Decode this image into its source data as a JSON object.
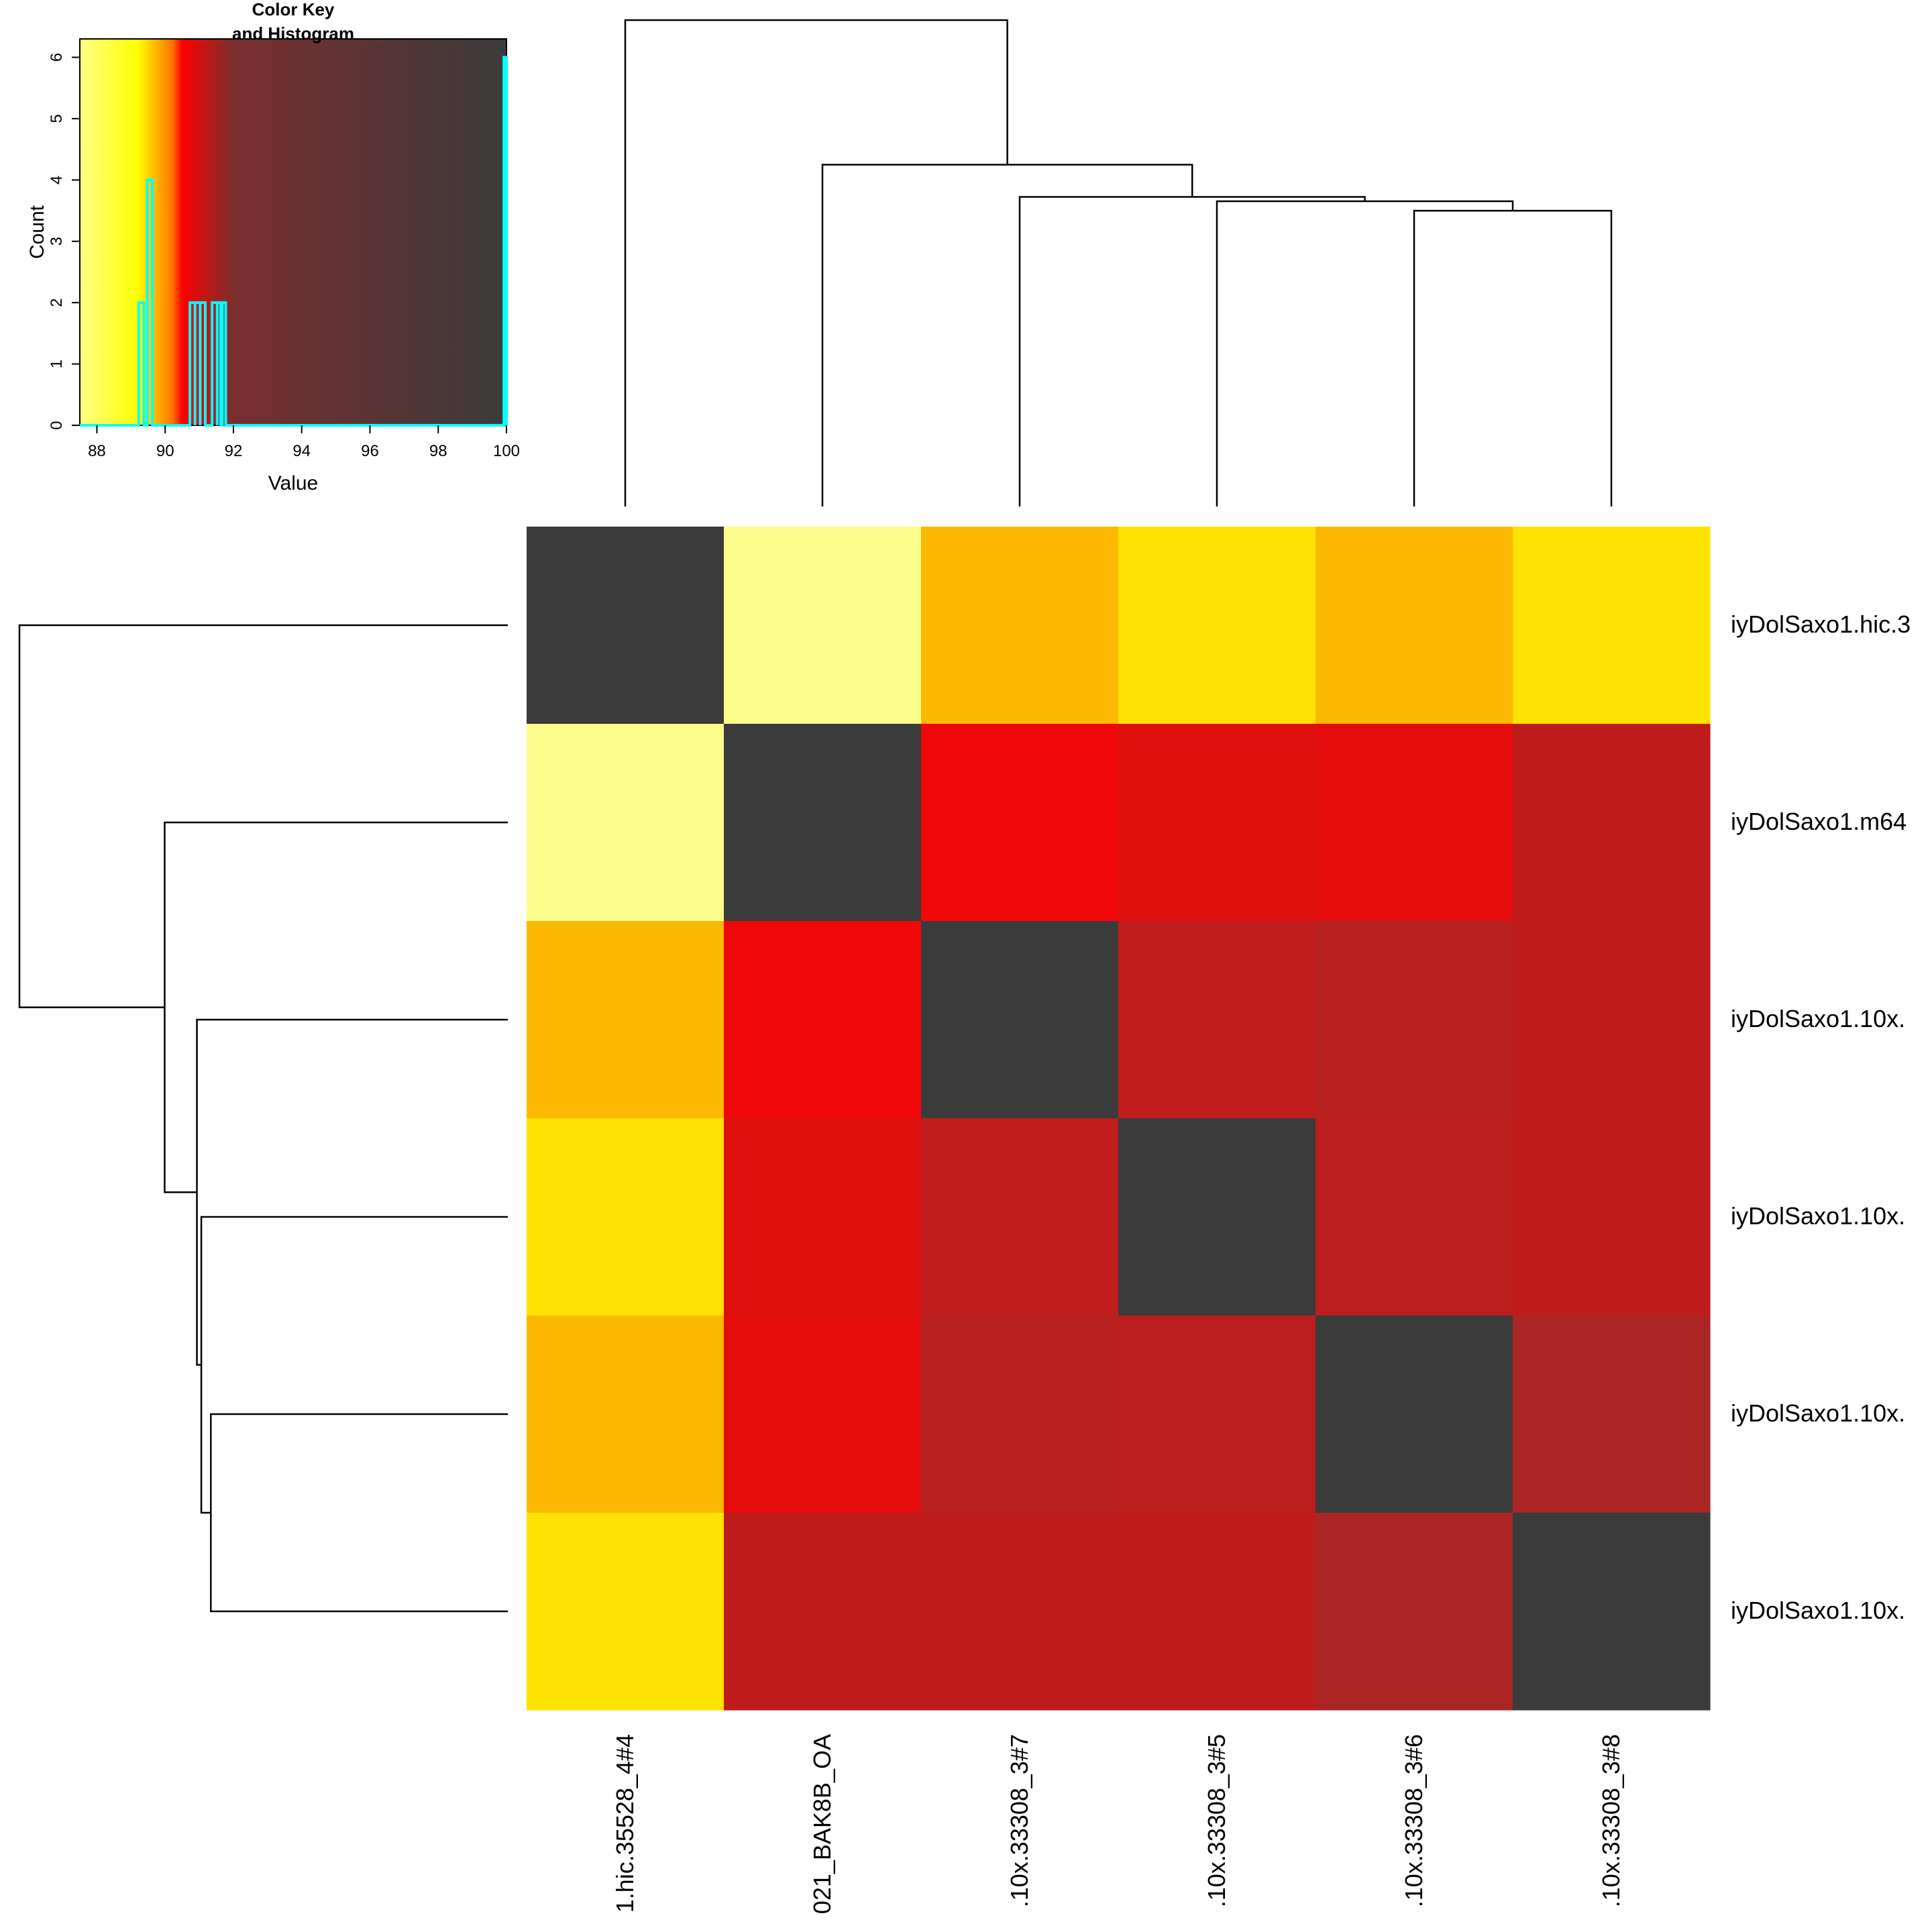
{
  "chart_data": [
    {
      "type": "heatmap",
      "title": "",
      "xlabel": "",
      "ylabel": "",
      "column_labels": [
        "1.hic.35528_4#4",
        "021_BAK8B_OA",
        ".10x.33308_3#7",
        ".10x.33308_3#5",
        ".10x.33308_3#6",
        ".10x.33308_3#8"
      ],
      "row_labels": [
        "iyDolSaxo1.hic.3",
        "iyDolSaxo1.m64",
        "iyDolSaxo1.10x.",
        "iyDolSaxo1.10x.",
        "iyDolSaxo1.10x.",
        "iyDolSaxo1.10x."
      ],
      "values": [
        [
          100,
          88.7,
          90.3,
          89.5,
          90.3,
          89.5
        ],
        [
          88.7,
          100,
          91.0,
          91.4,
          91.1,
          91.7
        ],
        [
          90.3,
          91.0,
          100,
          91.7,
          91.8,
          91.7
        ],
        [
          89.5,
          91.4,
          91.7,
          100,
          91.7,
          91.7
        ],
        [
          90.3,
          91.1,
          91.8,
          91.7,
          100,
          92.2
        ],
        [
          89.5,
          91.7,
          91.7,
          91.7,
          92.2,
          100
        ]
      ],
      "cell_colors": [
        [
          "#3b3b3b",
          "#fdfd8c",
          "#fdb801",
          "#fde301",
          "#fdb801",
          "#fde301"
        ],
        [
          "#fdfd8c",
          "#3b3b3b",
          "#f00808",
          "#de1010",
          "#e60c0c",
          "#c01b1b"
        ],
        [
          "#fdb801",
          "#f00808",
          "#3b3b3b",
          "#c01c1c",
          "#b81f1f",
          "#c01b1b"
        ],
        [
          "#fde301",
          "#de1010",
          "#c01c1c",
          "#3b3b3b",
          "#bc1d1d",
          "#c01b1b"
        ],
        [
          "#fdb801",
          "#e60c0c",
          "#b81f1f",
          "#bc1d1d",
          "#3b3b3b",
          "#ab2525"
        ],
        [
          "#fde301",
          "#c01b1b",
          "#c01b1b",
          "#c01b1b",
          "#ab2525",
          "#3b3b3b"
        ]
      ],
      "column_dendrogram": {
        "merges": [
          {
            "left": 4,
            "right": 5,
            "height": 4.05
          },
          {
            "left": 3,
            "right": "m0",
            "height": 4.18
          },
          {
            "left": 2,
            "right": "m1",
            "height": 4.24
          },
          {
            "left": 1,
            "right": "m2",
            "height": 4.68
          },
          {
            "left": 0,
            "right": "m3",
            "height": 6.66
          }
        ]
      },
      "row_dendrogram": {
        "merges": [
          {
            "left": 4,
            "right": 5,
            "height": 4.05
          },
          {
            "left": 3,
            "right": "m0",
            "height": 4.18
          },
          {
            "left": 2,
            "right": "m1",
            "height": 4.24
          },
          {
            "left": 1,
            "right": "m2",
            "height": 4.68
          },
          {
            "left": 0,
            "right": "m3",
            "height": 6.66
          }
        ]
      }
    },
    {
      "type": "histogram",
      "title": "Color Key\nand Histogram",
      "xlabel": "Value",
      "ylabel": "Count",
      "xlim": [
        87.5,
        100
      ],
      "ylim": [
        0,
        6.3
      ],
      "x_ticks": [
        88,
        90,
        92,
        94,
        96,
        98,
        100
      ],
      "y_ticks": [
        0,
        1,
        2,
        3,
        4,
        5,
        6
      ],
      "color_stops": [
        {
          "value": 87.5,
          "color": "#ffff88"
        },
        {
          "value": 89.2,
          "color": "#ffff00"
        },
        {
          "value": 90.2,
          "color": "#ff7700"
        },
        {
          "value": 90.5,
          "color": "#ff0000"
        },
        {
          "value": 92.0,
          "color": "#7a2e2e"
        },
        {
          "value": 100,
          "color": "#3b3b3b"
        }
      ],
      "line_color": "#00ffff",
      "bins": [
        {
          "x": 89.3,
          "count": 2
        },
        {
          "x": 89.55,
          "count": 4
        },
        {
          "x": 90.8,
          "count": 2
        },
        {
          "x": 90.95,
          "count": 2
        },
        {
          "x": 91.1,
          "count": 2
        },
        {
          "x": 91.45,
          "count": 2
        },
        {
          "x": 91.6,
          "count": 2
        },
        {
          "x": 91.7,
          "count": 2
        },
        {
          "x": 100,
          "count": 6
        }
      ]
    }
  ]
}
